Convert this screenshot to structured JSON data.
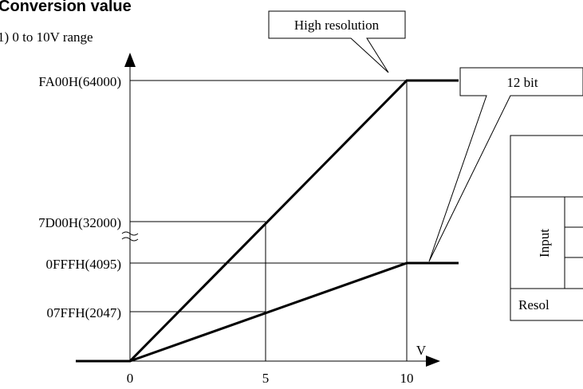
{
  "header": {
    "title": "Conversion value",
    "subtitle": "1) 0 to 10V range"
  },
  "callouts": {
    "high": "High resolution",
    "low": "12 bit"
  },
  "y_labels": [
    "FA00H(64000)",
    "7D00H(32000)",
    "0FFFH(4095)",
    "07FFH(2047)"
  ],
  "x_labels": [
    "0",
    "5",
    "10"
  ],
  "x_unit": "V",
  "table": {
    "row_header": "Input",
    "footer": "Resol"
  }
}
